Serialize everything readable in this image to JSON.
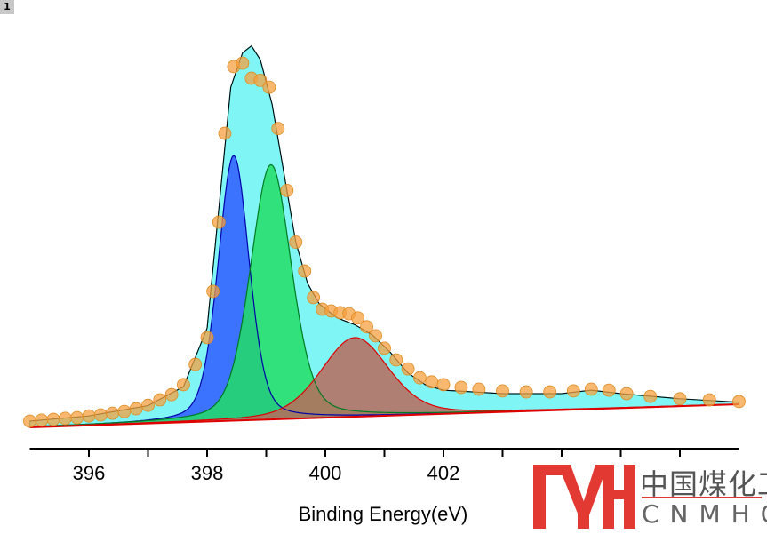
{
  "badge": "1",
  "logo": {
    "cn": "中国煤化工",
    "en": "CNMHG",
    "color": "#e23a33"
  },
  "chart_data": {
    "type": "line",
    "title": "",
    "xlabel": "Binding Energy(eV)",
    "ylabel": "",
    "xlim": [
      395,
      407
    ],
    "ylim": [
      0,
      120
    ],
    "xticks": [
      396,
      397,
      398,
      399,
      400,
      401,
      402,
      403,
      404,
      405,
      406
    ],
    "xtick_labels": [
      "396",
      "398",
      "400",
      "402"
    ],
    "xtick_label_values": [
      396,
      398,
      400,
      402
    ],
    "baseline": {
      "start": [
        395,
        6.2
      ],
      "end": [
        407,
        12.9
      ],
      "color": "#e00000"
    },
    "peaks": [
      {
        "name": "peak-1",
        "center": 398.45,
        "height": 77,
        "fwhm": 0.62,
        "fill": "#2f5bff",
        "stroke": "#0000aa"
      },
      {
        "name": "peak-2",
        "center": 399.08,
        "height": 74,
        "fwhm": 0.82,
        "fill": "#22dd66",
        "stroke": "#007a20"
      },
      {
        "name": "peak-3",
        "center": 400.5,
        "height": 23,
        "fwhm": 1.35,
        "fill": "#b86a5c",
        "stroke": "#e00000"
      }
    ],
    "envelope": {
      "color": "#7ff5f5",
      "x": [
        395,
        396,
        397,
        397.6,
        398.0,
        398.2,
        398.4,
        398.6,
        398.75,
        398.9,
        399.1,
        399.3,
        399.5,
        399.7,
        399.9,
        400.2,
        400.5,
        400.8,
        401.1,
        401.4,
        401.7,
        402,
        403,
        404,
        404.5,
        405,
        406,
        407
      ],
      "y": [
        8,
        9.5,
        12.5,
        18,
        35,
        70,
        105,
        115,
        117,
        113,
        100,
        80,
        60,
        48,
        42,
        38,
        36,
        33,
        28,
        22,
        18.5,
        17,
        16,
        16,
        17,
        16,
        14.5,
        13.5
      ]
    },
    "series": [
      {
        "name": "data",
        "color": "#f5a040",
        "x": [
          395.0,
          395.2,
          395.4,
          395.6,
          395.8,
          396.0,
          396.2,
          396.4,
          396.6,
          396.8,
          397.0,
          397.2,
          397.4,
          397.6,
          397.8,
          398.0,
          398.1,
          398.2,
          398.3,
          398.45,
          398.6,
          398.75,
          398.9,
          399.05,
          399.2,
          399.35,
          399.5,
          399.65,
          399.8,
          399.95,
          400.1,
          400.25,
          400.4,
          400.55,
          400.7,
          400.85,
          401.0,
          401.2,
          401.4,
          401.6,
          401.8,
          402.0,
          402.3,
          402.6,
          403.0,
          403.4,
          403.8,
          404.2,
          404.5,
          404.8,
          405.1,
          405.5,
          406.0,
          406.5,
          407.0
        ],
        "y": [
          8.0,
          8.3,
          8.5,
          8.8,
          9.0,
          9.5,
          9.8,
          10.3,
          10.8,
          11.6,
          12.6,
          14.2,
          15.7,
          18.6,
          24.5,
          32.3,
          45.7,
          65.8,
          91.6,
          111,
          112,
          107.6,
          107,
          105,
          93,
          75,
          60,
          51.6,
          43.9,
          40.5,
          40,
          39.5,
          39.2,
          38,
          35.4,
          32.8,
          29.2,
          25.8,
          23.2,
          20.6,
          19.4,
          18.6,
          17.8,
          17.3,
          16.8,
          16.5,
          16.5,
          16.8,
          17.3,
          17,
          16,
          15.2,
          14.5,
          14.2,
          13.7
        ]
      }
    ]
  }
}
